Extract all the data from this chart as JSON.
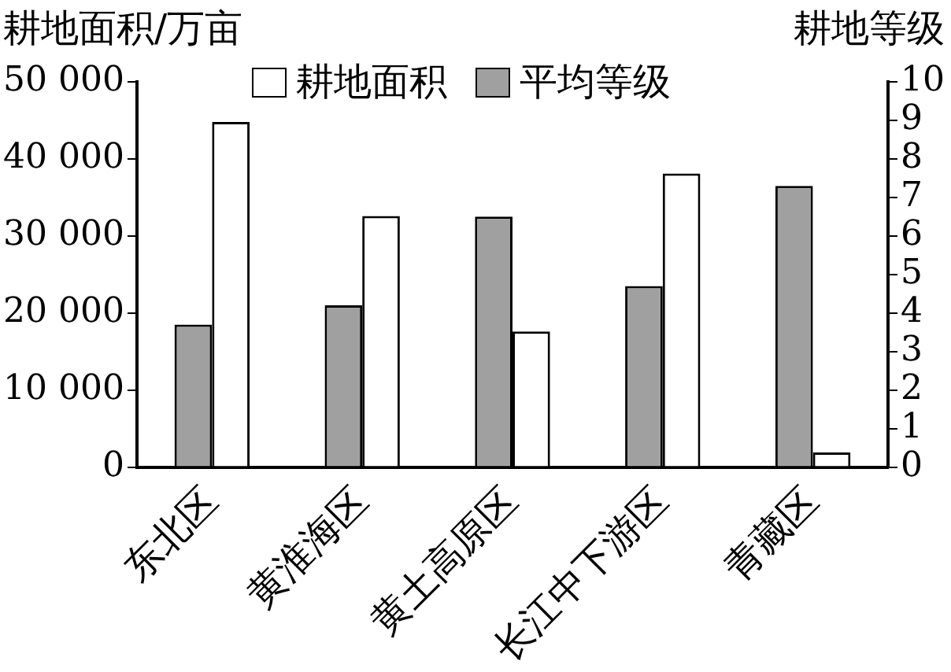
{
  "chart_data": {
    "type": "bar",
    "categories": [
      "东北区",
      "黄淮海区",
      "黄土高原区",
      "长江中下游区",
      "青藏区"
    ],
    "ylabel": "耕地面积/万亩",
    "y2label": "耕地等级",
    "series": [
      {
        "name": "平均等级",
        "color": "#a0a0a0",
        "axis": "y2",
        "values": [
          3.7,
          4.2,
          6.5,
          4.7,
          7.3
        ]
      },
      {
        "name": "耕地面积",
        "color": "#ffffff",
        "values": [
          44800,
          32600,
          17600,
          38100,
          1900
        ]
      }
    ],
    "ylim": [
      0,
      50000
    ],
    "yticks": [
      0,
      {
        "value": 10000,
        "label": "10 000"
      },
      {
        "value": 20000,
        "label": "20 000"
      },
      {
        "value": 30000,
        "label": "30 000"
      },
      {
        "value": 40000,
        "label": "40 000"
      },
      {
        "value": 50000,
        "label": "50 000"
      }
    ],
    "y2lim": [
      0,
      10
    ],
    "y2ticks": [
      0,
      1,
      2,
      3,
      4,
      5,
      6,
      7,
      8,
      9,
      10
    ],
    "grid": false,
    "legend": "top"
  }
}
